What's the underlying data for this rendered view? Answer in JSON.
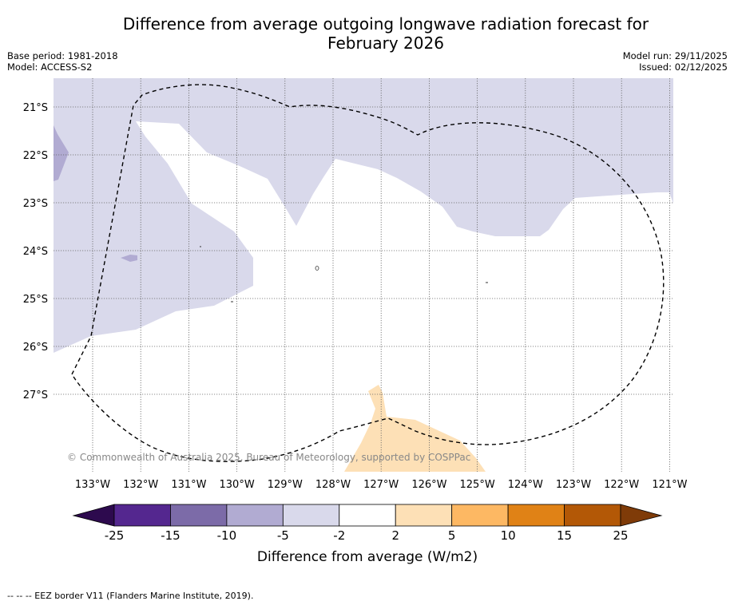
{
  "title_line1": "Difference from average outgoing longwave radiation forecast for",
  "title_line2": "February 2026",
  "base_period": "Base period: 1981-2018",
  "model": "Model: ACCESS-S2",
  "model_run": "Model run: 29/11/2025",
  "issued": "Issued: 02/12/2025",
  "copyright": "© Commonwealth of Australia 2025, Bureau of Meteorology, supported by COSPPac",
  "lat_labels": [
    "21°S",
    "22°S",
    "23°S",
    "24°S",
    "25°S",
    "26°S",
    "27°S"
  ],
  "lon_labels": [
    "133°W",
    "132°W",
    "131°W",
    "130°W",
    "129°W",
    "128°W",
    "127°W",
    "126°W",
    "125°W",
    "124°W",
    "123°W",
    "122°W",
    "121°W"
  ],
  "colorbar": {
    "ticks": [
      "-25",
      "-15",
      "-10",
      "-5",
      "-2",
      "2",
      "5",
      "10",
      "15",
      "25"
    ],
    "label": "Difference from average (W/m2)",
    "colors": {
      "under": "#2d0a4e",
      "b1": "#54278f",
      "b2": "#7c6ba8",
      "b3": "#b1abd2",
      "b4": "#d9d9eb",
      "b5": "#ffffff",
      "b6": "#fde0b6",
      "b7": "#fdb863",
      "b8": "#e08216",
      "b9": "#b35806",
      "over": "#7f3b08"
    }
  },
  "footnote": "--  --  -- EEZ border V11 (Flanders Marine Institute, 2019)."
}
